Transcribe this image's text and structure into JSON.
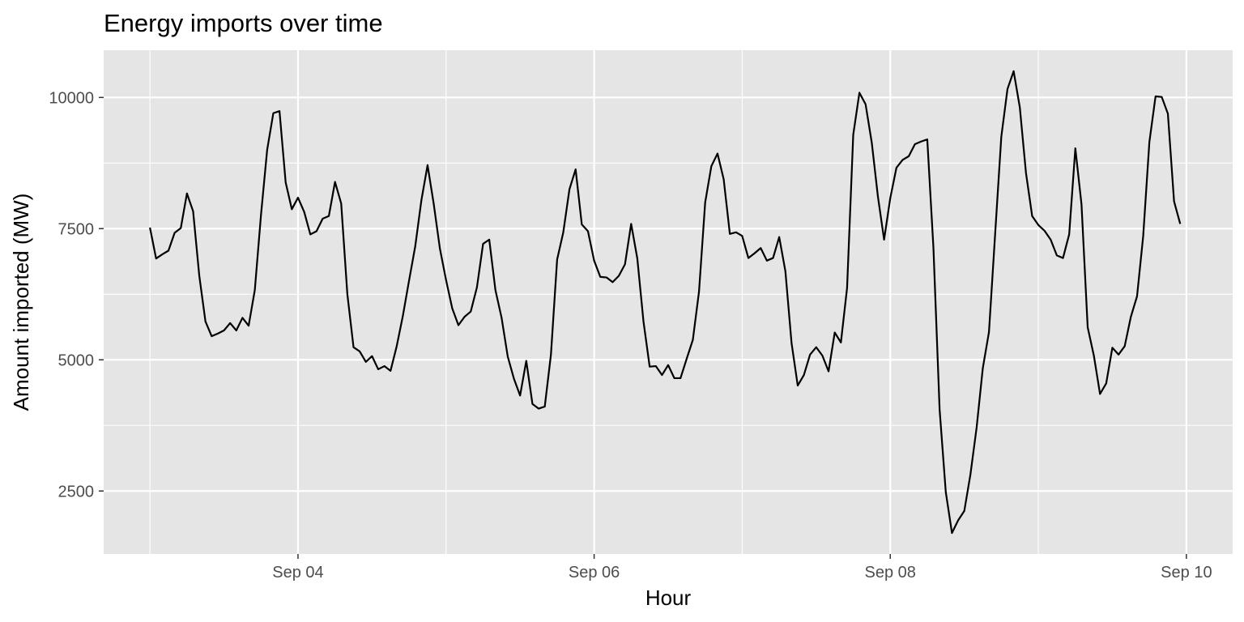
{
  "chart_data": {
    "type": "line",
    "title": "Energy imports over time",
    "xlabel": "Hour",
    "ylabel": "Amount imported (MW)",
    "x_ticks": [
      {
        "label": "Sep 04",
        "x": "2019-09-04T00:00"
      },
      {
        "label": "Sep 06",
        "x": "2019-09-06T00:00"
      },
      {
        "label": "Sep 08",
        "x": "2019-09-08T00:00"
      },
      {
        "label": "Sep 10",
        "x": "2019-09-10T00:00"
      }
    ],
    "y_ticks": [
      2500,
      5000,
      7500,
      10000
    ],
    "xlim": [
      "2019-09-02T16:30",
      "2019-09-10T07:30"
    ],
    "ylim": [
      1300,
      10900
    ],
    "grid": true,
    "background": "#e5e5e5",
    "grid_color": "#ffffff",
    "line_color": "#000000",
    "series": [
      {
        "x_start": "2019-09-03T00:00",
        "x_step_hours": 1,
        "values": [
          7520,
          6930,
          7010,
          7080,
          7420,
          7510,
          8170,
          7830,
          6600,
          5730,
          5450,
          5500,
          5560,
          5700,
          5560,
          5800,
          5650,
          6330,
          7760,
          9000,
          9700,
          9740,
          8380,
          7870,
          8090,
          7820,
          7390,
          7450,
          7690,
          7740,
          8390,
          7980,
          6250,
          5240,
          5160,
          4960,
          5070,
          4820,
          4880,
          4790,
          5260,
          5840,
          6510,
          7160,
          8040,
          8710,
          7970,
          7120,
          6520,
          5980,
          5660,
          5820,
          5920,
          6380,
          7210,
          7290,
          6330,
          5800,
          5060,
          4640,
          4320,
          4980,
          4160,
          4070,
          4110,
          5100,
          6910,
          7430,
          8250,
          8630,
          7580,
          7450,
          6890,
          6580,
          6570,
          6480,
          6600,
          6820,
          7590,
          6930,
          5730,
          4870,
          4880,
          4710,
          4900,
          4650,
          4650,
          5020,
          5380,
          6300,
          8000,
          8690,
          8930,
          8440,
          7400,
          7430,
          7360,
          6940,
          7030,
          7130,
          6890,
          6940,
          7340,
          6690,
          5320,
          4510,
          4710,
          5100,
          5240,
          5080,
          4780,
          5520,
          5330,
          6370,
          9290,
          10090,
          9870,
          9140,
          8110,
          7290,
          8080,
          8660,
          8810,
          8880,
          9110,
          9160,
          9200,
          7130,
          4050,
          2480,
          1700,
          1940,
          2120,
          2820,
          3710,
          4840,
          5530,
          7400,
          9250,
          10160,
          10500,
          9810,
          8560,
          7740,
          7570,
          7460,
          7290,
          6990,
          6940,
          7390,
          9030,
          7960,
          5620,
          5080,
          4350,
          4550,
          5230,
          5100,
          5260,
          5820,
          6210,
          7360,
          9150,
          10020,
          10010,
          9690,
          8020,
          7590
        ]
      }
    ]
  }
}
